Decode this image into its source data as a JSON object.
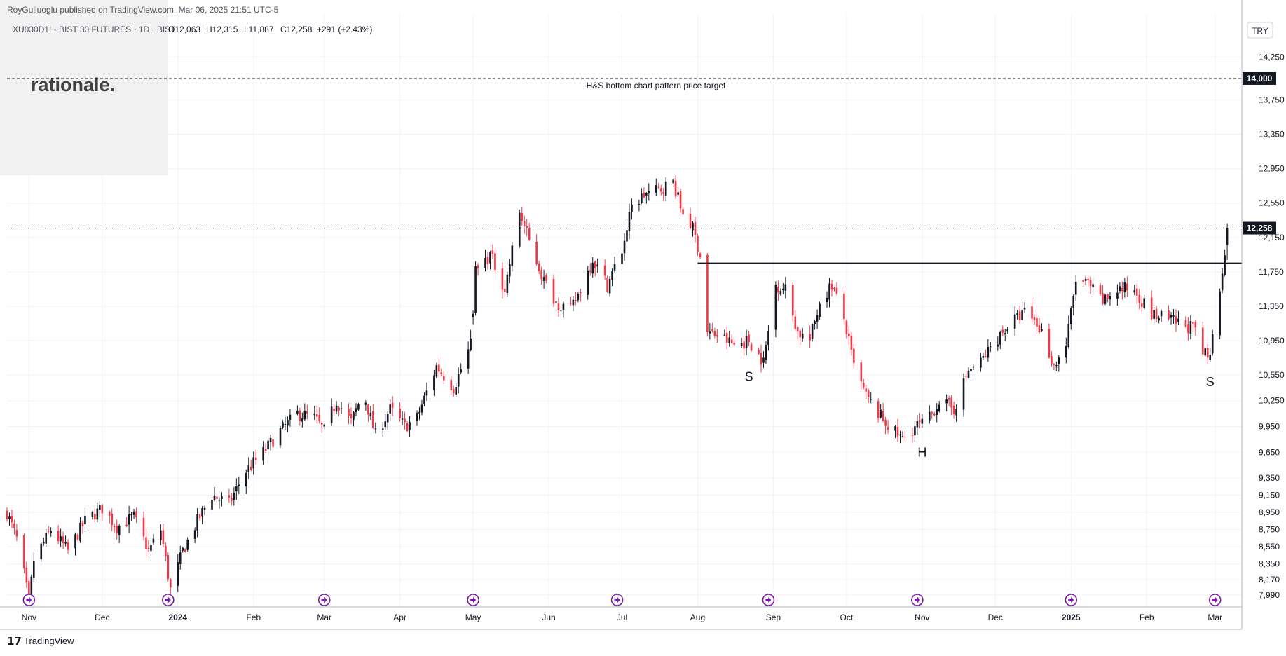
{
  "header": {
    "publisher": "RoyGulluoglu published on TradingView.com, Mar 06, 2025 21:51 UTC-5",
    "symbol": "XU030D1! · BIST 30 FUTURES · 1D · BIST",
    "open": "O12,063",
    "high": "H12,315",
    "low": "L11,887",
    "close": "C12,258",
    "change": "+291 (+2.43%)"
  },
  "watermark": "rationale.",
  "currency_button": "TRY",
  "footer_brand": "TradingView",
  "colors": {
    "up": "#131722",
    "down": "#f23645",
    "grid": "#f0f3fa",
    "axis_line": "#b2b5be",
    "event_icon": "#7b1fa2"
  },
  "chart_data": {
    "type": "candlestick",
    "ylim": [
      7850,
      14750
    ],
    "ytick_labels": [
      "7,990",
      "8,170",
      "8,350",
      "8,550",
      "8,750",
      "8,950",
      "9,150",
      "9,350",
      "9,650",
      "9,950",
      "10,250",
      "10,550",
      "10,950",
      "11,350",
      "11,750",
      "12,150",
      "12,550",
      "12,950",
      "13,350",
      "13,750",
      "14,250"
    ],
    "ytick_values": [
      7990,
      8170,
      8350,
      8550,
      8750,
      8950,
      9150,
      9350,
      9650,
      9950,
      10250,
      10550,
      10950,
      11350,
      11750,
      12150,
      12550,
      12950,
      13350,
      13750,
      14250
    ],
    "xtick_labels": [
      "Nov",
      "Dec",
      "2024",
      "Feb",
      "Mar",
      "Apr",
      "May",
      "Jun",
      "Jul",
      "Aug",
      "Sep",
      "Oct",
      "Nov",
      "Dec",
      "2025",
      "Feb",
      "Mar"
    ],
    "xtick_dates": [
      "2023-11-01",
      "2023-12-01",
      "2024-01-01",
      "2024-02-01",
      "2024-03-01",
      "2024-04-01",
      "2024-05-01",
      "2024-06-01",
      "2024-07-01",
      "2024-08-01",
      "2024-09-01",
      "2024-10-01",
      "2024-11-01",
      "2024-12-01",
      "2025-01-01",
      "2025-02-01",
      "2025-03-01"
    ],
    "bold_ticks": [
      "2024",
      "2025"
    ],
    "x_start": "2023-10-23",
    "x_end": "2025-03-12",
    "price_path": [
      [
        "2023-10-23",
        8950
      ],
      [
        "2023-10-28",
        8560
      ],
      [
        "2023-11-01",
        7900
      ],
      [
        "2023-11-03",
        8400
      ],
      [
        "2023-11-10",
        8750
      ],
      [
        "2023-11-17",
        8500
      ],
      [
        "2023-11-24",
        8850
      ],
      [
        "2023-12-01",
        9000
      ],
      [
        "2023-12-07",
        8780
      ],
      [
        "2023-12-14",
        8900
      ],
      [
        "2023-12-20",
        8500
      ],
      [
        "2023-12-25",
        8750
      ],
      [
        "2023-12-29",
        8050
      ],
      [
        "2024-01-03",
        8500
      ],
      [
        "2024-01-09",
        8850
      ],
      [
        "2024-01-15",
        9150
      ],
      [
        "2024-01-22",
        9050
      ],
      [
        "2024-01-28",
        9400
      ],
      [
        "2024-02-05",
        9650
      ],
      [
        "2024-02-12",
        9900
      ],
      [
        "2024-02-19",
        10100
      ],
      [
        "2024-02-26",
        10050
      ],
      [
        "2024-03-01",
        9900
      ],
      [
        "2024-03-06",
        10250
      ],
      [
        "2024-03-12",
        10000
      ],
      [
        "2024-03-17",
        10350
      ],
      [
        "2024-03-22",
        9850
      ],
      [
        "2024-03-28",
        10150
      ],
      [
        "2024-04-03",
        9950
      ],
      [
        "2024-04-08",
        10050
      ],
      [
        "2024-04-16",
        10650
      ],
      [
        "2024-04-23",
        10400
      ],
      [
        "2024-04-30",
        10900
      ],
      [
        "2024-05-02",
        11750
      ],
      [
        "2024-05-08",
        11950
      ],
      [
        "2024-05-14",
        11550
      ],
      [
        "2024-05-20",
        12450
      ],
      [
        "2024-05-24",
        12100
      ],
      [
        "2024-05-30",
        11650
      ],
      [
        "2024-06-04",
        11400
      ],
      [
        "2024-06-10",
        11300
      ],
      [
        "2024-06-14",
        11550
      ],
      [
        "2024-06-19",
        11900
      ],
      [
        "2024-06-25",
        11600
      ],
      [
        "2024-07-01",
        12000
      ],
      [
        "2024-07-05",
        12500
      ],
      [
        "2024-07-10",
        12650
      ],
      [
        "2024-07-16",
        12700
      ],
      [
        "2024-07-22",
        12800
      ],
      [
        "2024-07-25",
        12500
      ],
      [
        "2024-07-30",
        12250
      ],
      [
        "2024-08-03",
        11850
      ],
      [
        "2024-08-05",
        11050
      ],
      [
        "2024-08-10",
        11000
      ],
      [
        "2024-08-16",
        10900
      ],
      [
        "2024-08-22",
        10950
      ],
      [
        "2024-08-28",
        10700
      ],
      [
        "2024-09-02",
        11600
      ],
      [
        "2024-09-06",
        11550
      ],
      [
        "2024-09-11",
        11050
      ],
      [
        "2024-09-16",
        10950
      ],
      [
        "2024-09-20",
        11400
      ],
      [
        "2024-09-25",
        11600
      ],
      [
        "2024-09-30",
        11200
      ],
      [
        "2024-10-04",
        10650
      ],
      [
        "2024-10-09",
        10300
      ],
      [
        "2024-10-14",
        10100
      ],
      [
        "2024-10-20",
        9900
      ],
      [
        "2024-10-24",
        9800
      ],
      [
        "2024-10-29",
        9950
      ],
      [
        "2024-11-03",
        10000
      ],
      [
        "2024-11-08",
        10250
      ],
      [
        "2024-11-14",
        10150
      ],
      [
        "2024-11-20",
        10600
      ],
      [
        "2024-11-25",
        10700
      ],
      [
        "2024-12-01",
        10950
      ],
      [
        "2024-12-07",
        11150
      ],
      [
        "2024-12-14",
        11300
      ],
      [
        "2024-12-20",
        11050
      ],
      [
        "2024-12-25",
        10650
      ],
      [
        "2024-12-30",
        10900
      ],
      [
        "2025-01-03",
        11650
      ],
      [
        "2025-01-08",
        11600
      ],
      [
        "2025-01-14",
        11400
      ],
      [
        "2025-01-20",
        11550
      ],
      [
        "2025-01-27",
        11550
      ],
      [
        "2025-02-03",
        11250
      ],
      [
        "2025-02-09",
        11200
      ],
      [
        "2025-02-14",
        11150
      ],
      [
        "2025-02-20",
        11100
      ],
      [
        "2025-02-24",
        10800
      ],
      [
        "2025-02-27",
        10750
      ],
      [
        "2025-03-01",
        11400
      ],
      [
        "2025-03-04",
        11700
      ],
      [
        "2025-03-06",
        12258
      ]
    ],
    "annotations": [
      {
        "text": "S",
        "date": "2024-08-22",
        "price": 10480
      },
      {
        "text": "H",
        "date": "2024-11-01",
        "price": 9600
      },
      {
        "text": "S",
        "date": "2025-02-27",
        "price": 10420
      }
    ],
    "neckline": {
      "start": "2024-08-01",
      "end": "2025-03-12",
      "price": 11850
    },
    "target": {
      "price": 14000,
      "label": "14,000",
      "text": "H&S bottom chart pattern price target"
    },
    "last_price": {
      "price": 12258,
      "label": "12,258"
    },
    "event_dates": [
      "2023-11-01",
      "2023-12-28",
      "2024-03-01",
      "2024-05-01",
      "2024-06-29",
      "2024-08-30",
      "2024-10-30",
      "2025-01-01",
      "2025-03-01"
    ]
  }
}
